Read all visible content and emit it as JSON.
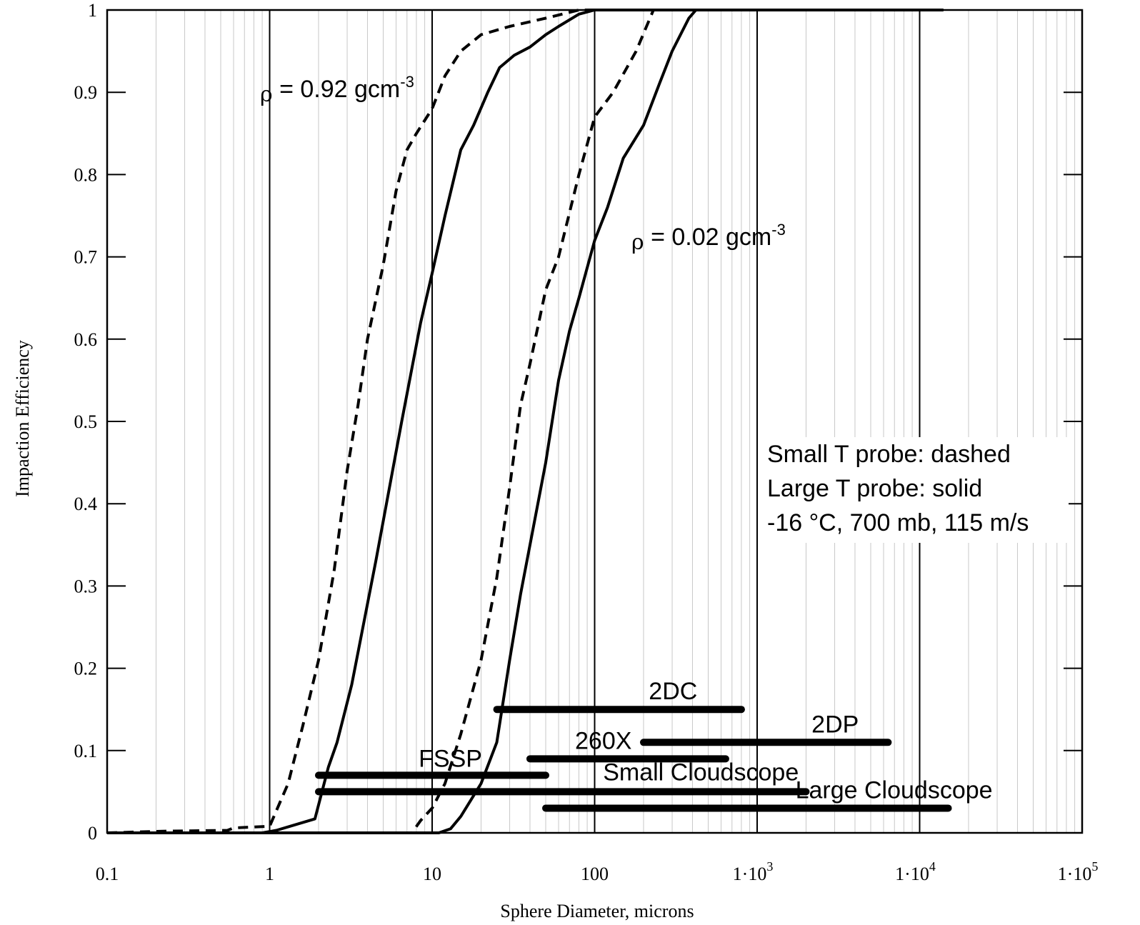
{
  "chart_data": {
    "type": "line",
    "xscale": "log",
    "xlim": [
      0.1,
      100000
    ],
    "ylim": [
      0,
      1
    ],
    "grid": true,
    "xlabel": "Sphere Diameter, microns",
    "ylabel": "Impaction Efficiency",
    "y_ticks": [
      "0",
      "0.1",
      "0.2",
      "0.3",
      "0.4",
      "0.5",
      "0.6",
      "0.7",
      "0.8",
      "0.9",
      "1"
    ],
    "x_ticks": [
      {
        "value": 0.1,
        "base": "0.1",
        "exp": ""
      },
      {
        "value": 1,
        "base": "1",
        "exp": ""
      },
      {
        "value": 10,
        "base": "10",
        "exp": ""
      },
      {
        "value": 100,
        "base": "100",
        "exp": ""
      },
      {
        "value": 1000,
        "base": "1·10",
        "exp": "3"
      },
      {
        "value": 10000,
        "base": "1·10",
        "exp": "4"
      },
      {
        "value": 100000,
        "base": "1·10",
        "exp": "5"
      }
    ],
    "series": [
      {
        "style": "dashed",
        "group": "0.92",
        "points": [
          [
            0.1,
            0
          ],
          [
            0.22,
            0.002
          ],
          [
            0.55,
            0.003
          ],
          [
            0.6,
            0.006
          ],
          [
            1.0,
            0.008
          ],
          [
            1.3,
            0.06
          ],
          [
            1.6,
            0.13
          ],
          [
            2.0,
            0.21
          ],
          [
            2.5,
            0.32
          ],
          [
            3.0,
            0.44
          ],
          [
            3.5,
            0.52
          ],
          [
            4.0,
            0.6
          ],
          [
            5.0,
            0.69
          ],
          [
            6.0,
            0.78
          ],
          [
            7.0,
            0.83
          ],
          [
            8.0,
            0.85
          ],
          [
            10,
            0.88
          ],
          [
            12,
            0.92
          ],
          [
            15,
            0.95
          ],
          [
            20,
            0.97
          ],
          [
            30,
            0.98
          ],
          [
            50,
            0.99
          ],
          [
            80,
            1.0
          ],
          [
            100,
            1.0
          ],
          [
            1000,
            1.0
          ],
          [
            14000,
            1.0
          ]
        ]
      },
      {
        "style": "solid",
        "group": "0.92",
        "points": [
          [
            0.1,
            0
          ],
          [
            0.9,
            0
          ],
          [
            1.1,
            0.003
          ],
          [
            1.9,
            0.017
          ],
          [
            2.3,
            0.08
          ],
          [
            2.6,
            0.11
          ],
          [
            3.2,
            0.18
          ],
          [
            4.5,
            0.33
          ],
          [
            6.5,
            0.5
          ],
          [
            8.5,
            0.62
          ],
          [
            10,
            0.68
          ],
          [
            12,
            0.75
          ],
          [
            15,
            0.83
          ],
          [
            18,
            0.86
          ],
          [
            22,
            0.9
          ],
          [
            26,
            0.93
          ],
          [
            32,
            0.945
          ],
          [
            40,
            0.955
          ],
          [
            50,
            0.97
          ],
          [
            60,
            0.98
          ],
          [
            80,
            0.995
          ],
          [
            100,
            1.0
          ],
          [
            1000,
            1.0
          ],
          [
            14000,
            1.0
          ]
        ]
      },
      {
        "style": "dashed",
        "group": "0.02",
        "points": [
          [
            0.1,
            0
          ],
          [
            7.5,
            0
          ],
          [
            8.5,
            0.015
          ],
          [
            10,
            0.03
          ],
          [
            12,
            0.06
          ],
          [
            15,
            0.12
          ],
          [
            20,
            0.21
          ],
          [
            25,
            0.31
          ],
          [
            30,
            0.42
          ],
          [
            35,
            0.52
          ],
          [
            40,
            0.57
          ],
          [
            50,
            0.66
          ],
          [
            60,
            0.7
          ],
          [
            80,
            0.8
          ],
          [
            100,
            0.87
          ],
          [
            130,
            0.9
          ],
          [
            180,
            0.95
          ],
          [
            230,
            1.0
          ],
          [
            400,
            1.0
          ],
          [
            14000,
            1.0
          ]
        ]
      },
      {
        "style": "solid",
        "group": "0.02",
        "points": [
          [
            0.1,
            0
          ],
          [
            11,
            0
          ],
          [
            13,
            0.005
          ],
          [
            15,
            0.02
          ],
          [
            20,
            0.06
          ],
          [
            25,
            0.11
          ],
          [
            30,
            0.21
          ],
          [
            35,
            0.29
          ],
          [
            40,
            0.35
          ],
          [
            50,
            0.45
          ],
          [
            60,
            0.55
          ],
          [
            70,
            0.61
          ],
          [
            80,
            0.65
          ],
          [
            100,
            0.72
          ],
          [
            120,
            0.76
          ],
          [
            150,
            0.82
          ],
          [
            200,
            0.86
          ],
          [
            250,
            0.91
          ],
          [
            300,
            0.95
          ],
          [
            380,
            0.99
          ],
          [
            420,
            1.0
          ],
          [
            14000,
            1.0
          ]
        ]
      }
    ],
    "density_labels": [
      {
        "prefix": "ρ",
        "text": " = 0.92 gcm",
        "sup": "-3"
      },
      {
        "prefix": "ρ",
        "text": " = 0.02 gcm",
        "sup": "-3"
      }
    ],
    "instrument_ranges": [
      {
        "name": "2DC",
        "x": [
          25,
          800
        ],
        "y": 0.15
      },
      {
        "name": "2DP",
        "x": [
          200,
          6400
        ],
        "y": 0.11
      },
      {
        "name": "260X",
        "x": [
          40,
          640
        ],
        "y": 0.09
      },
      {
        "name": "FSSP",
        "x": [
          2,
          50
        ],
        "y": 0.07
      },
      {
        "name": "Small Cloudscope",
        "x": [
          2,
          2000
        ],
        "y": 0.05
      },
      {
        "name": "Large Cloudscope",
        "x": [
          50,
          15000
        ],
        "y": 0.03
      }
    ],
    "legend_lines": [
      "Small T probe:  dashed",
      "Large T probe:  solid",
      "-16 °C, 700 mb, 115 m/s"
    ]
  }
}
